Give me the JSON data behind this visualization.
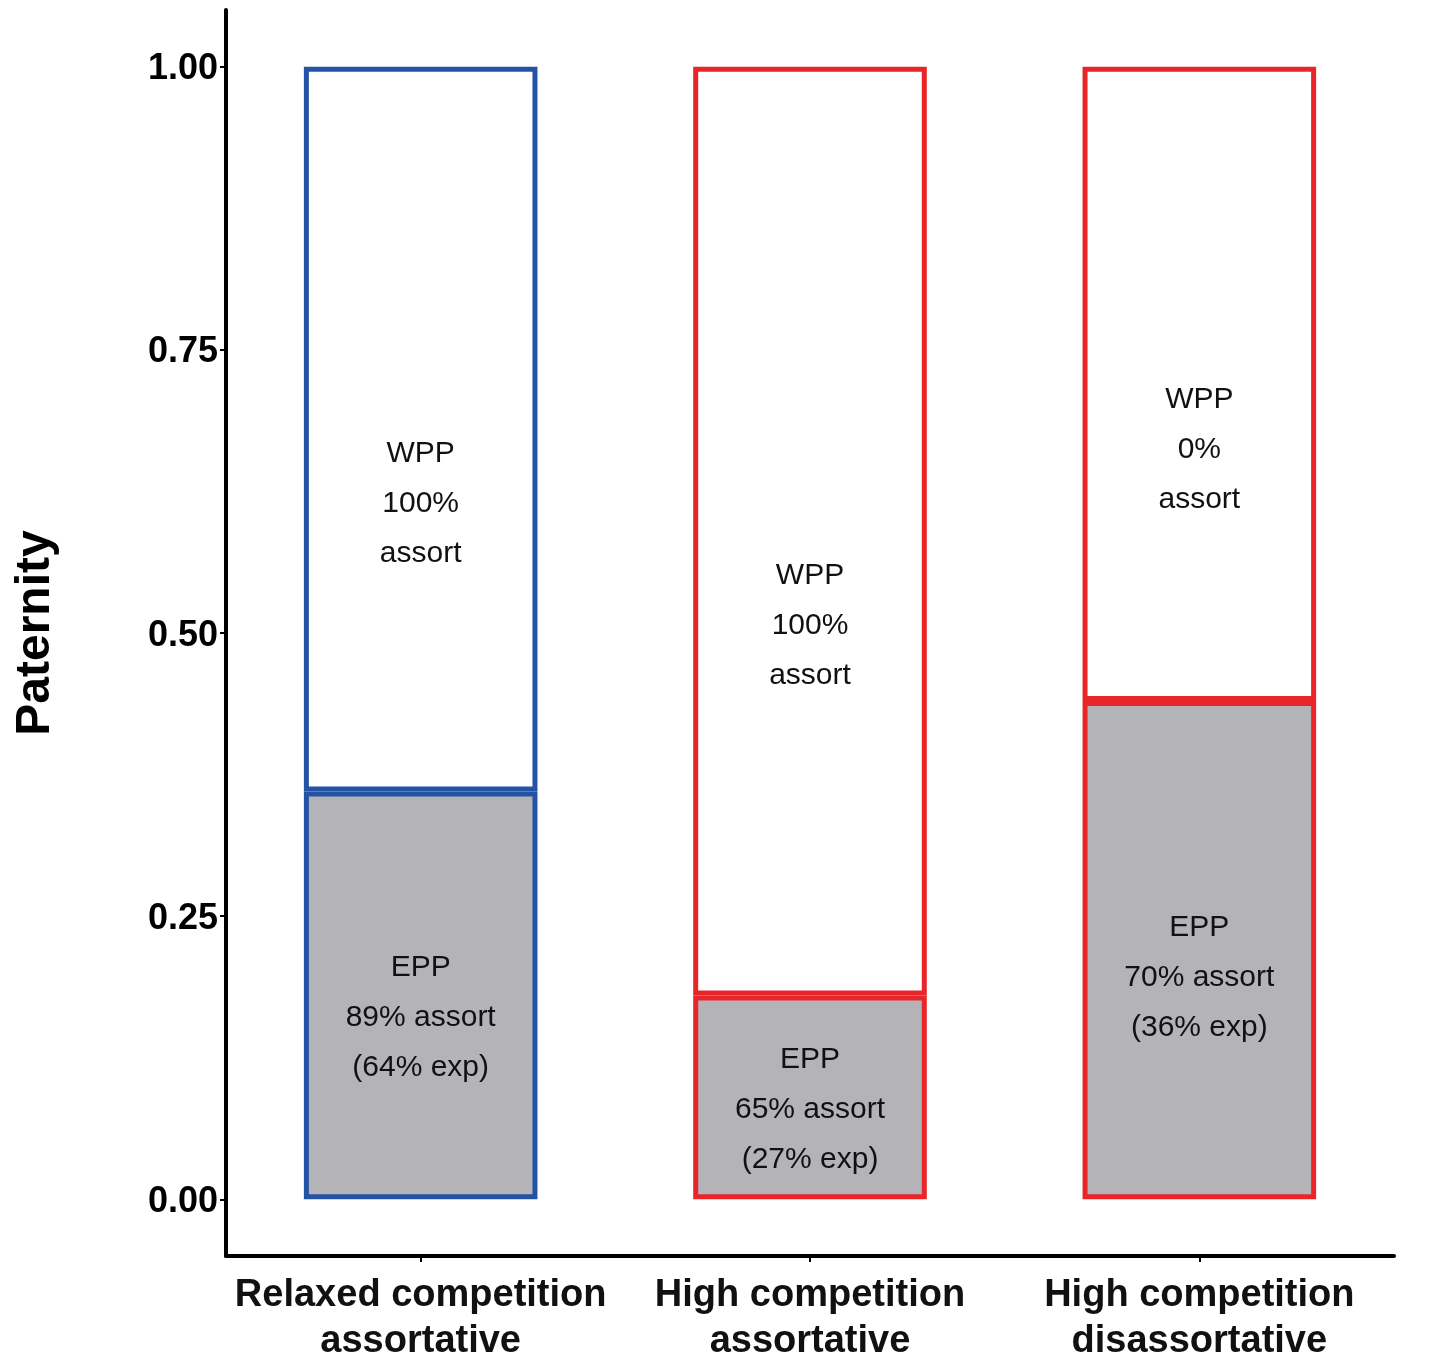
{
  "chart_data": {
    "type": "bar",
    "stacked": true,
    "ylabel": "Paternity",
    "categories": [
      "Relaxed competition\nassortative",
      "High competition\nassortative",
      "High competition\ndisassortative"
    ],
    "series": [
      {
        "color": "#b4b3b7",
        "values": [
          0.36,
          0.18,
          0.44
        ]
      },
      {
        "color": "#ffffff",
        "values": [
          0.64,
          0.82,
          0.56
        ]
      }
    ],
    "annotations": [
      "WPP\n100%\nassort",
      "EPP\n89% assort\n(64% exp)",
      "WPP\n100%\nassort",
      "EPP\n65% assort\n(27% exp)",
      "WPP\n0%\nassort",
      "EPP\n70% assort\n(36% exp)"
    ],
    "ylim": [
      -0.05,
      1.05
    ],
    "yticks": [
      {
        "value": 0,
        "label": "0.00"
      },
      {
        "value": 0.25,
        "label": "0.25"
      },
      {
        "value": 0.5,
        "label": "0.50"
      },
      {
        "value": 0.75,
        "label": "0.75"
      },
      {
        "value": 1,
        "label": "1.00"
      }
    ],
    "grid": false
  }
}
